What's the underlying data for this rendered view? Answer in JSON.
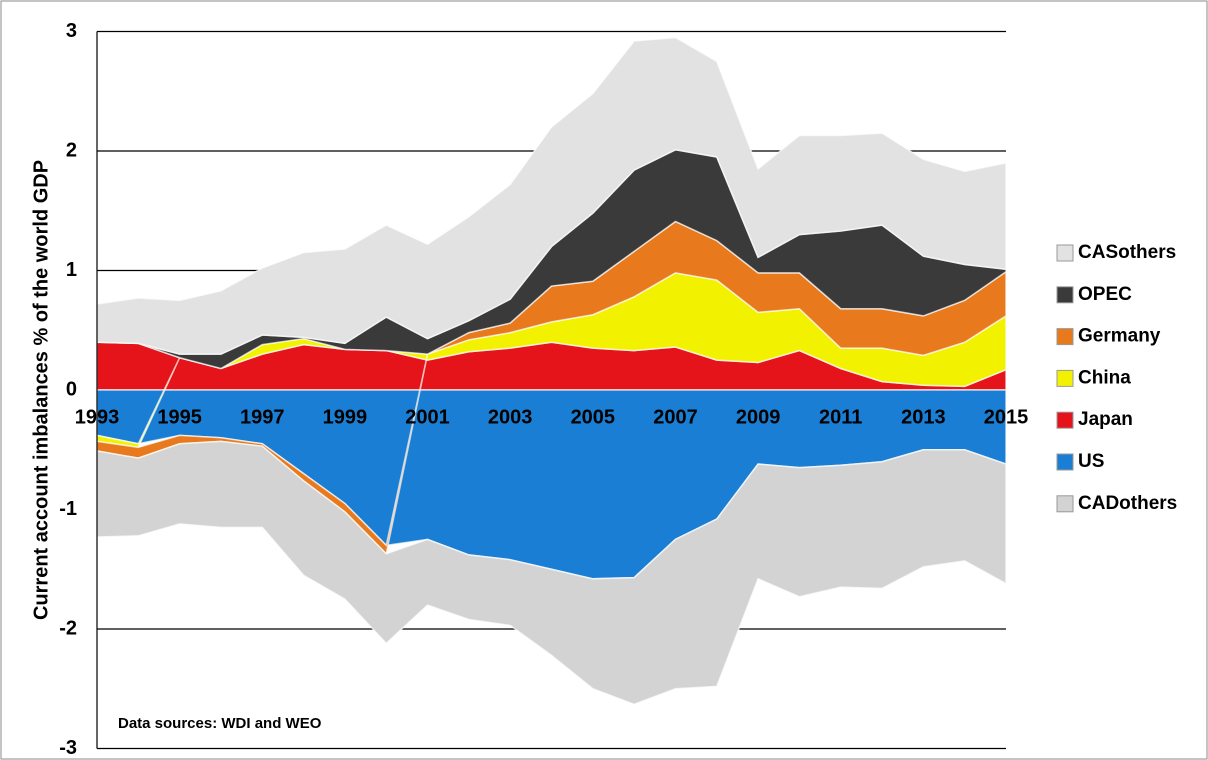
{
  "chart_data": {
    "type": "area",
    "y_label": "Current account imbalances % of the world GDP",
    "annotation": "Data sources: WDI and WEO",
    "categories": [
      "1993",
      null,
      "1995",
      null,
      "1997",
      null,
      "1999",
      null,
      "2001",
      null,
      "2003",
      null,
      "2005",
      null,
      "2007",
      null,
      "2009",
      null,
      "2011",
      null,
      "2013",
      null,
      "2015"
    ],
    "series": [
      {
        "name": "CASothers",
        "color": "#e2e2e2",
        "values": [
          0.32,
          0.38,
          0.45,
          0.53,
          0.56,
          0.71,
          0.79,
          0.77,
          0.79,
          0.87,
          0.96,
          1.0,
          1.0,
          1.08,
          0.94,
          0.8,
          0.74,
          0.83,
          0.8,
          0.77,
          0.81,
          0.78,
          0.89
        ]
      },
      {
        "name": "OPEC",
        "color": "#3a3a3a",
        "values": [
          0,
          0,
          0.03,
          0.12,
          0.08,
          0.01,
          0.05,
          0.28,
          0.13,
          0.1,
          0.2,
          0.33,
          0.57,
          0.68,
          0.6,
          0.7,
          0.13,
          0.32,
          0.65,
          0.7,
          0.5,
          0.3,
          0.02
        ]
      },
      {
        "name": "Germany",
        "color": "#e8791c",
        "values": [
          -0.08,
          -0.09,
          -0.07,
          -0.03,
          -0.02,
          -0.06,
          -0.07,
          -0.07,
          0,
          0.06,
          0.08,
          0.3,
          0.28,
          0.38,
          0.43,
          0.33,
          0.33,
          0.3,
          0.33,
          0.33,
          0.33,
          0.35,
          0.37
        ]
      },
      {
        "name": "China",
        "color": "#f2f200",
        "values": [
          -0.05,
          -0.03,
          0,
          0,
          0.08,
          0.05,
          0,
          0,
          0.05,
          0.1,
          0.13,
          0.17,
          0.28,
          0.45,
          0.62,
          0.67,
          0.42,
          0.35,
          0.17,
          0.28,
          0.25,
          0.37,
          0.45
        ]
      },
      {
        "name": "Japan",
        "color": "#e5141b",
        "values": [
          0.4,
          0.39,
          0.27,
          0.18,
          0.3,
          0.38,
          0.34,
          0.33,
          0.25,
          0.32,
          0.35,
          0.4,
          0.35,
          0.33,
          0.36,
          0.25,
          0.23,
          0.33,
          0.18,
          0.07,
          0.04,
          0.03,
          0.17
        ]
      },
      {
        "name": "US",
        "color": "#1a7fd4",
        "values": [
          -0.38,
          -0.45,
          -0.38,
          -0.4,
          -0.45,
          -0.7,
          -0.95,
          -1.3,
          -1.25,
          -1.38,
          -1.42,
          -1.5,
          -1.58,
          -1.57,
          -1.25,
          -1.08,
          -0.62,
          -0.65,
          -0.63,
          -0.6,
          -0.5,
          -0.5,
          -0.62
        ]
      },
      {
        "name": "CADothers",
        "color": "#d3d3d3",
        "values": [
          -0.72,
          -0.65,
          -0.67,
          -0.72,
          -0.68,
          -0.79,
          -0.73,
          -0.75,
          -0.55,
          -0.54,
          -0.55,
          -0.72,
          -0.92,
          -1.06,
          -1.25,
          -1.4,
          -0.96,
          -1.08,
          -1.02,
          -1.06,
          -0.98,
          -0.93,
          -1.0
        ]
      }
    ],
    "ylim": [
      -3,
      3
    ],
    "yticks": [
      -3,
      -2,
      -1,
      0,
      1,
      2,
      3
    ],
    "grid": true,
    "legend": "right"
  }
}
